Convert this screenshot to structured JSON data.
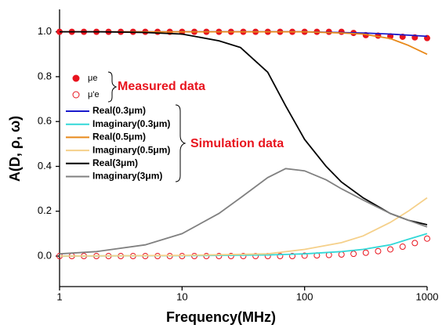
{
  "chart_data": {
    "type": "line",
    "xlabel": "Frequency(MHz)",
    "ylabel": "A(D, ρ, ω)",
    "log_x": true,
    "xlim": [
      1,
      1000
    ],
    "xticks": [
      1,
      10,
      100,
      1000
    ],
    "ylim": [
      -0.136,
      1.1
    ],
    "yticks": [
      {
        "value": 0,
        "label": "0.0"
      },
      0.2,
      0.4,
      0.6,
      {
        "value": 0.8,
        "label": "0.8"
      },
      {
        "value": 1,
        "label": "1.0"
      }
    ],
    "annotations": [
      "Measured data",
      "Simulation data"
    ],
    "series": [
      {
        "name": "μe",
        "mode": "filled-markers",
        "color": "#e8141e",
        "x": [
          1,
          1.26,
          1.58,
          2,
          2.51,
          3.16,
          3.98,
          5.01,
          6.31,
          7.94,
          10,
          12.6,
          15.8,
          20,
          25.1,
          31.6,
          39.8,
          50.1,
          63.1,
          79.4,
          100,
          126,
          158,
          200,
          251,
          316,
          398,
          501,
          631,
          794,
          1000
        ],
        "values": [
          1,
          1,
          1,
          1,
          1,
          1,
          1,
          1,
          1,
          1,
          1,
          1,
          1,
          1,
          1,
          1,
          1,
          1,
          1,
          1,
          1,
          1,
          1,
          1,
          0.995,
          0.985,
          0.983,
          0.98,
          0.978,
          0.975,
          0.972
        ]
      },
      {
        "name": "μ'e",
        "mode": "open-markers",
        "color": "#e8141e",
        "x": [
          1,
          1.26,
          1.58,
          2,
          2.51,
          3.16,
          3.98,
          5.01,
          6.31,
          7.94,
          10,
          12.6,
          15.8,
          20,
          25.1,
          31.6,
          39.8,
          50.1,
          63.1,
          79.4,
          100,
          126,
          158,
          200,
          251,
          316,
          398,
          501,
          631,
          794,
          1000
        ],
        "values": [
          0,
          0,
          0,
          0,
          0,
          0,
          0,
          0,
          0,
          0,
          0,
          0,
          0,
          0,
          0,
          0,
          0,
          0,
          0,
          0,
          0.002,
          0.003,
          0.005,
          0.007,
          0.01,
          0.015,
          0.022,
          0.03,
          0.042,
          0.058,
          0.078
        ]
      },
      {
        "name": "Real(0.3μm)",
        "color": "#1a1acc",
        "x": [
          1,
          10,
          100,
          300,
          500,
          700,
          1000
        ],
        "values": [
          1,
          1,
          1,
          0.995,
          0.99,
          0.985,
          0.98
        ]
      },
      {
        "name": "Imaginary(0.3μm)",
        "color": "#33d8d8",
        "x": [
          1,
          10,
          50,
          100,
          200,
          300,
          500,
          700,
          1000
        ],
        "values": [
          0,
          0.002,
          0.005,
          0.01,
          0.02,
          0.03,
          0.05,
          0.075,
          0.1
        ]
      },
      {
        "name": "Real(0.5μm)",
        "color": "#e8891a",
        "x": [
          1,
          10,
          100,
          200,
          300,
          500,
          700,
          1000
        ],
        "values": [
          1,
          1,
          1,
          0.995,
          0.99,
          0.97,
          0.94,
          0.9
        ]
      },
      {
        "name": "Imaginary(0.5μm)",
        "color": "#f5d08a",
        "x": [
          1,
          10,
          50,
          100,
          200,
          300,
          500,
          700,
          1000
        ],
        "values": [
          0,
          0.003,
          0.01,
          0.03,
          0.06,
          0.09,
          0.15,
          0.2,
          0.26
        ]
      },
      {
        "name": "Real(3μm)",
        "color": "#000000",
        "x": [
          1,
          2,
          5,
          10,
          20,
          30,
          50,
          70,
          100,
          150,
          200,
          300,
          500,
          700,
          1000
        ],
        "values": [
          1,
          1,
          0.997,
          0.99,
          0.96,
          0.93,
          0.82,
          0.67,
          0.52,
          0.4,
          0.33,
          0.26,
          0.19,
          0.16,
          0.14
        ]
      },
      {
        "name": "Imaginary(3μm)",
        "color": "#808080",
        "x": [
          1,
          2,
          5,
          10,
          20,
          30,
          50,
          70,
          100,
          150,
          200,
          300,
          500,
          700,
          1000
        ],
        "values": [
          0.01,
          0.02,
          0.05,
          0.1,
          0.19,
          0.26,
          0.35,
          0.39,
          0.38,
          0.34,
          0.3,
          0.25,
          0.19,
          0.16,
          0.13
        ]
      }
    ]
  }
}
